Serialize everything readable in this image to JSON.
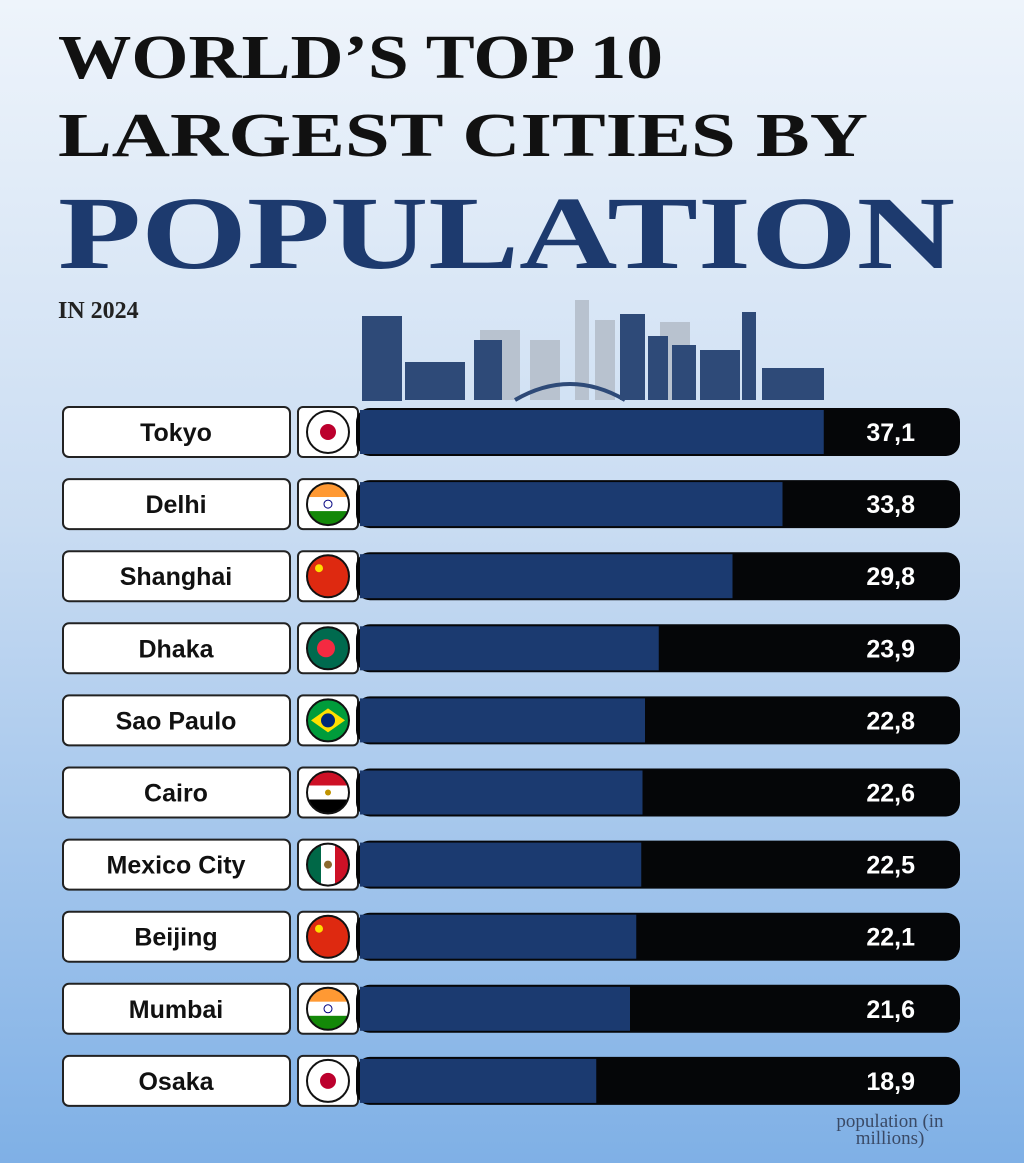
{
  "chart_data": {
    "type": "bar",
    "title_lines": [
      "WORLD’S TOP 10",
      "LARGEST CITIES BY",
      "POPULATION"
    ],
    "subtitle": "IN 2024",
    "categories": [
      "Tokyo",
      "Delhi",
      "Shanghai",
      "Dhaka",
      "Sao Paulo",
      "Cairo",
      "Mexico City",
      "Beijing",
      "Mumbai",
      "Osaka"
    ],
    "values": [
      37.1,
      33.8,
      29.8,
      23.9,
      22.8,
      22.6,
      22.5,
      22.1,
      21.6,
      18.9
    ],
    "value_labels": [
      "37,1",
      "33,8",
      "29,8",
      "23,9",
      "22,8",
      "22,6",
      "22,5",
      "22,1",
      "21,6",
      "18,9"
    ],
    "color": "#1b3a70",
    "track_color": "#050608",
    "xlim": [
      0,
      48
    ],
    "axis_label": "population (in millions)"
  }
}
